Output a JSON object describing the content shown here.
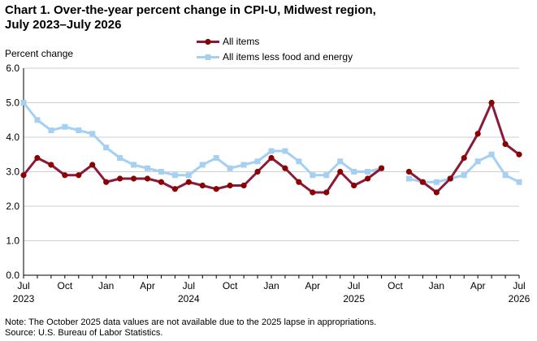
{
  "title_line1": "Chart 1. Over-the-year percent change in CPI-U, Midwest region,",
  "title_line2": "July 2023–July 2026",
  "footnote": "Note: The October 2025 data values  are not available  due to the 2025 lapse in appropriations.",
  "source": "Source: U.S. Bureau of Labor Statistics.",
  "chart_data": {
    "type": "line",
    "ylabel": "Percent change",
    "ylim": [
      0,
      6
    ],
    "yticks": [
      "0.0",
      "1.0",
      "2.0",
      "3.0",
      "4.0",
      "5.0",
      "6.0"
    ],
    "x": [
      "Jul 2023",
      "Aug 2023",
      "Sep 2023",
      "Oct 2023",
      "Nov 2023",
      "Dec 2023",
      "Jan 2024",
      "Feb 2024",
      "Mar 2024",
      "Apr 2024",
      "May 2024",
      "Jun 2024",
      "Jul 2024",
      "Aug 2024",
      "Sep 2024",
      "Oct 2024",
      "Nov 2024",
      "Dec 2024",
      "Jan 2025",
      "Feb 2025",
      "Mar 2025",
      "Apr 2025",
      "May 2025",
      "Jun 2025",
      "Jul 2025",
      "Aug 2025",
      "Sep 2025",
      "Oct 2025",
      "Nov 2025",
      "Dec 2025",
      "Jan 2026",
      "Feb 2026",
      "Mar 2026",
      "Apr 2026",
      "May 2026",
      "Jun 2026",
      "Jul 2026"
    ],
    "xtick_labels": [
      {
        "i": 0,
        "label": "Jul",
        "year": "2023"
      },
      {
        "i": 3,
        "label": "Oct",
        "year": ""
      },
      {
        "i": 6,
        "label": "Jan",
        "year": ""
      },
      {
        "i": 9,
        "label": "Apr",
        "year": ""
      },
      {
        "i": 12,
        "label": "Jul",
        "year": "2024"
      },
      {
        "i": 15,
        "label": "Oct",
        "year": ""
      },
      {
        "i": 18,
        "label": "Jan",
        "year": ""
      },
      {
        "i": 21,
        "label": "Apr",
        "year": ""
      },
      {
        "i": 24,
        "label": "Jul",
        "year": "2025"
      },
      {
        "i": 27,
        "label": "Oct",
        "year": ""
      },
      {
        "i": 30,
        "label": "Jan",
        "year": ""
      },
      {
        "i": 33,
        "label": "Apr",
        "year": ""
      },
      {
        "i": 36,
        "label": "Jul",
        "year": "2026"
      }
    ],
    "series": [
      {
        "name": "All items",
        "color": "#8b1a3a",
        "marker_color": "#8b0000",
        "marker": "circle",
        "values": [
          2.9,
          3.4,
          3.2,
          2.9,
          2.9,
          3.2,
          2.7,
          2.8,
          2.8,
          2.8,
          2.7,
          2.5,
          2.7,
          2.6,
          2.5,
          2.6,
          2.6,
          3.0,
          3.4,
          3.1,
          2.7,
          2.4,
          2.4,
          3.0,
          2.6,
          2.8,
          3.1,
          null,
          3.0,
          2.7,
          2.4,
          2.8,
          3.4,
          4.1,
          5.0,
          3.8,
          3.5
        ]
      },
      {
        "name": "All items less food and energy",
        "color": "#a6d0f2",
        "marker_color": "#a6d0f2",
        "marker": "square",
        "values": [
          5.0,
          4.5,
          4.2,
          4.3,
          4.2,
          4.1,
          3.7,
          3.4,
          3.2,
          3.1,
          3.0,
          2.9,
          2.9,
          3.2,
          3.4,
          3.1,
          3.2,
          3.3,
          3.6,
          3.6,
          3.3,
          2.9,
          2.9,
          3.3,
          3.0,
          3.0,
          3.1,
          null,
          2.8,
          2.7,
          2.7,
          2.8,
          2.9,
          3.3,
          3.5,
          2.9,
          2.7
        ]
      }
    ],
    "grid": "horizontal",
    "legend_position": "top"
  }
}
